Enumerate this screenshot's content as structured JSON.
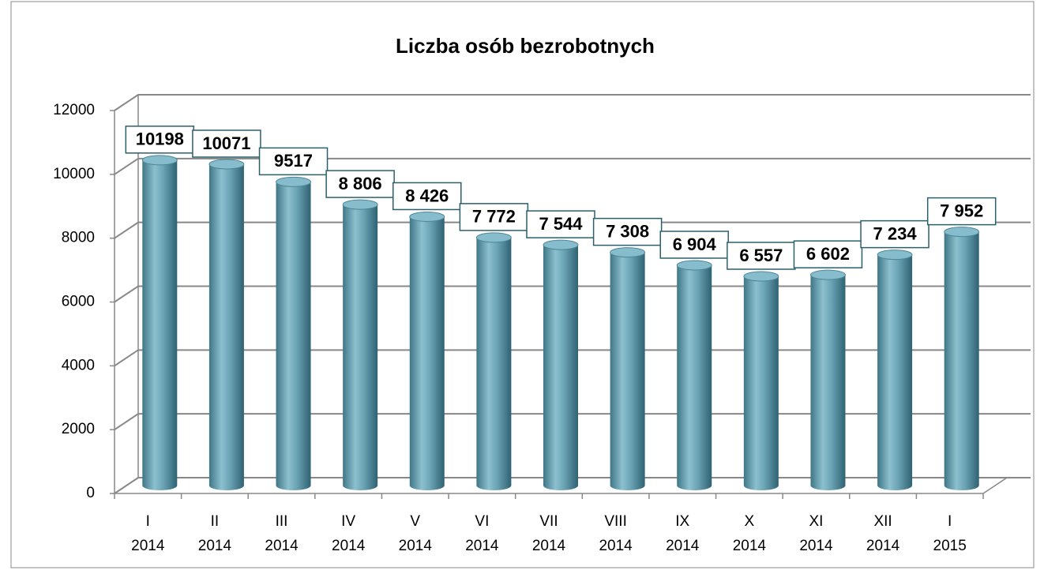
{
  "chart_data": {
    "type": "bar",
    "title": "Liczba osób bezrobotnych",
    "categories": [
      [
        "I",
        "2014"
      ],
      [
        "II",
        "2014"
      ],
      [
        "III",
        "2014"
      ],
      [
        "IV",
        "2014"
      ],
      [
        "V",
        "2014"
      ],
      [
        "VI",
        "2014"
      ],
      [
        "VII",
        "2014"
      ],
      [
        "VIII",
        "2014"
      ],
      [
        "IX",
        "2014"
      ],
      [
        "X",
        "2014"
      ],
      [
        "XI",
        "2014"
      ],
      [
        "XII",
        "2014"
      ],
      [
        "I",
        "2015"
      ]
    ],
    "values": [
      10198,
      10071,
      9517,
      8806,
      8426,
      7772,
      7544,
      7308,
      6904,
      6557,
      6602,
      7234,
      7952
    ],
    "value_labels": [
      "10198",
      "10071",
      "9517",
      "8 806",
      "8 426",
      "7 772",
      "7 544",
      "7 308",
      "6 904",
      "6 557",
      "6 602",
      "7 234",
      "7 952"
    ],
    "color": "#5b9aab",
    "ylim": [
      0,
      12000
    ],
    "yticks": [
      0,
      2000,
      4000,
      6000,
      8000,
      10000,
      12000
    ],
    "grid": true
  }
}
